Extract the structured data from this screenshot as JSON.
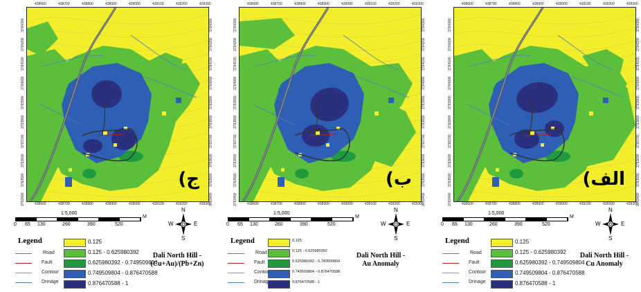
{
  "panels": [
    {
      "label": "ج)",
      "scale_ratio": "1:5,000",
      "title": "Dali North Hill - (Cu+Au)/(Pb+Zn)",
      "title_lines": [
        "Dali North Hill -",
        "(Cu+Au)/(Pb+Zn)"
      ]
    },
    {
      "label": "ب)",
      "scale_ratio": "1:5,000",
      "title": "Dali North Hill - Au Anomaly",
      "title_lines": [
        "Dali North Hill -",
        "Au Anomaly"
      ]
    },
    {
      "label": "الف)",
      "scale_ratio": "1:5,000",
      "title": "Dali North Hill - Cu Anomaly",
      "title_lines": [
        "Dali North Hill -",
        "Cu Anomaly"
      ]
    }
  ],
  "x_ticks": [
    "438600",
    "438700",
    "438800",
    "438900",
    "439000",
    "439100",
    "439200",
    "439300"
  ],
  "y_ticks": [
    "3794300",
    "3794200",
    "3794100",
    "3794000",
    "3793900",
    "3793800",
    "3793700",
    "3793600",
    "3793500",
    "3793400"
  ],
  "scale_labels": [
    "0",
    "65",
    "130",
    "260",
    "390",
    "520"
  ],
  "scale_unit": "M",
  "compass": {
    "n": "N",
    "s": "S",
    "e": "E",
    "w": "W"
  },
  "legend": {
    "title": "Legend",
    "lines": [
      {
        "label": "Road",
        "color": "#777777"
      },
      {
        "label": "Fault",
        "color": "#b22222"
      },
      {
        "label": "Contour",
        "color": "#999999"
      },
      {
        "label": "Drinage",
        "color": "#4a7fb5"
      }
    ],
    "classes": [
      {
        "label": "0.125",
        "color": "#f3ee2c"
      },
      {
        "label": "0.125 - 0.625980392",
        "color": "#5cbf3c"
      },
      {
        "label": "0.625980392 - 0.749509804",
        "color": "#1f9a3e"
      },
      {
        "label": "0.749509804 - 0.876470588",
        "color": "#2e5fb5"
      },
      {
        "label": "0.876470588 - 1",
        "color": "#2a2f7e"
      }
    ]
  }
}
